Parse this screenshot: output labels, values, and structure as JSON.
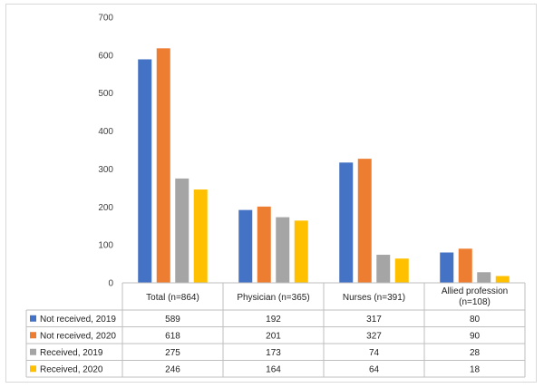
{
  "chart_data": {
    "type": "bar",
    "categories": [
      "Total (n=864)",
      "Physician (n=365)",
      "Nurses (n=391)",
      "Allied profession (n=108)"
    ],
    "series": [
      {
        "name": "Not received, 2019",
        "color": "#4472c4",
        "values": [
          589,
          192,
          317,
          80
        ]
      },
      {
        "name": "Not received, 2020",
        "color": "#ed7d31",
        "values": [
          618,
          201,
          327,
          90
        ]
      },
      {
        "name": "Received, 2019",
        "color": "#a5a5a5",
        "values": [
          275,
          173,
          74,
          28
        ]
      },
      {
        "name": "Received, 2020",
        "color": "#ffc000",
        "values": [
          246,
          164,
          64,
          18
        ]
      }
    ],
    "ylim": [
      0,
      700
    ],
    "yticks": [
      0,
      100,
      200,
      300,
      400,
      500,
      600,
      700
    ],
    "grid": false,
    "legend": "data-table",
    "title": "",
    "xlabel": "",
    "ylabel": ""
  }
}
